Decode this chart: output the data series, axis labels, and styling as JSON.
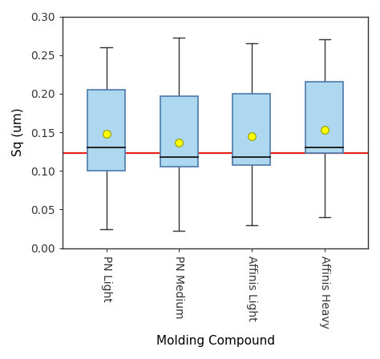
{
  "categories": [
    "PN Light",
    "PN Medium",
    "Affinis Light",
    "Affinis Heavy"
  ],
  "boxes": [
    {
      "whislo": 0.025,
      "q1": 0.1,
      "med": 0.13,
      "q3": 0.205,
      "whishi": 0.26,
      "mean": 0.148
    },
    {
      "whislo": 0.022,
      "q1": 0.105,
      "med": 0.118,
      "q3": 0.197,
      "whishi": 0.273,
      "mean": 0.137
    },
    {
      "whislo": 0.03,
      "q1": 0.108,
      "med": 0.118,
      "q3": 0.2,
      "whishi": 0.265,
      "mean": 0.145
    },
    {
      "whislo": 0.04,
      "q1": 0.123,
      "med": 0.13,
      "q3": 0.215,
      "whishi": 0.27,
      "mean": 0.153
    }
  ],
  "ref_line": 0.123,
  "box_color": "#add8f0",
  "box_edge_color": "#4a7aaa",
  "median_color": "#222222",
  "whisker_color": "#333333",
  "cap_color": "#333333",
  "mean_dot_color": "#ffff00",
  "mean_dot_edge": "#999900",
  "ref_line_color": "#e8221e",
  "xlabel": "Molding Compound",
  "ylabel": "Sq (um)",
  "ylim": [
    0.0,
    0.3
  ],
  "yticks": [
    0.0,
    0.05,
    0.1,
    0.15,
    0.2,
    0.25,
    0.3
  ],
  "label_fontsize": 11,
  "tick_fontsize": 10,
  "background_color": "#ffffff",
  "figure_bg": "#ffffff",
  "spine_color": "#333333",
  "box_width": 0.52,
  "cap_ratio": 0.3
}
